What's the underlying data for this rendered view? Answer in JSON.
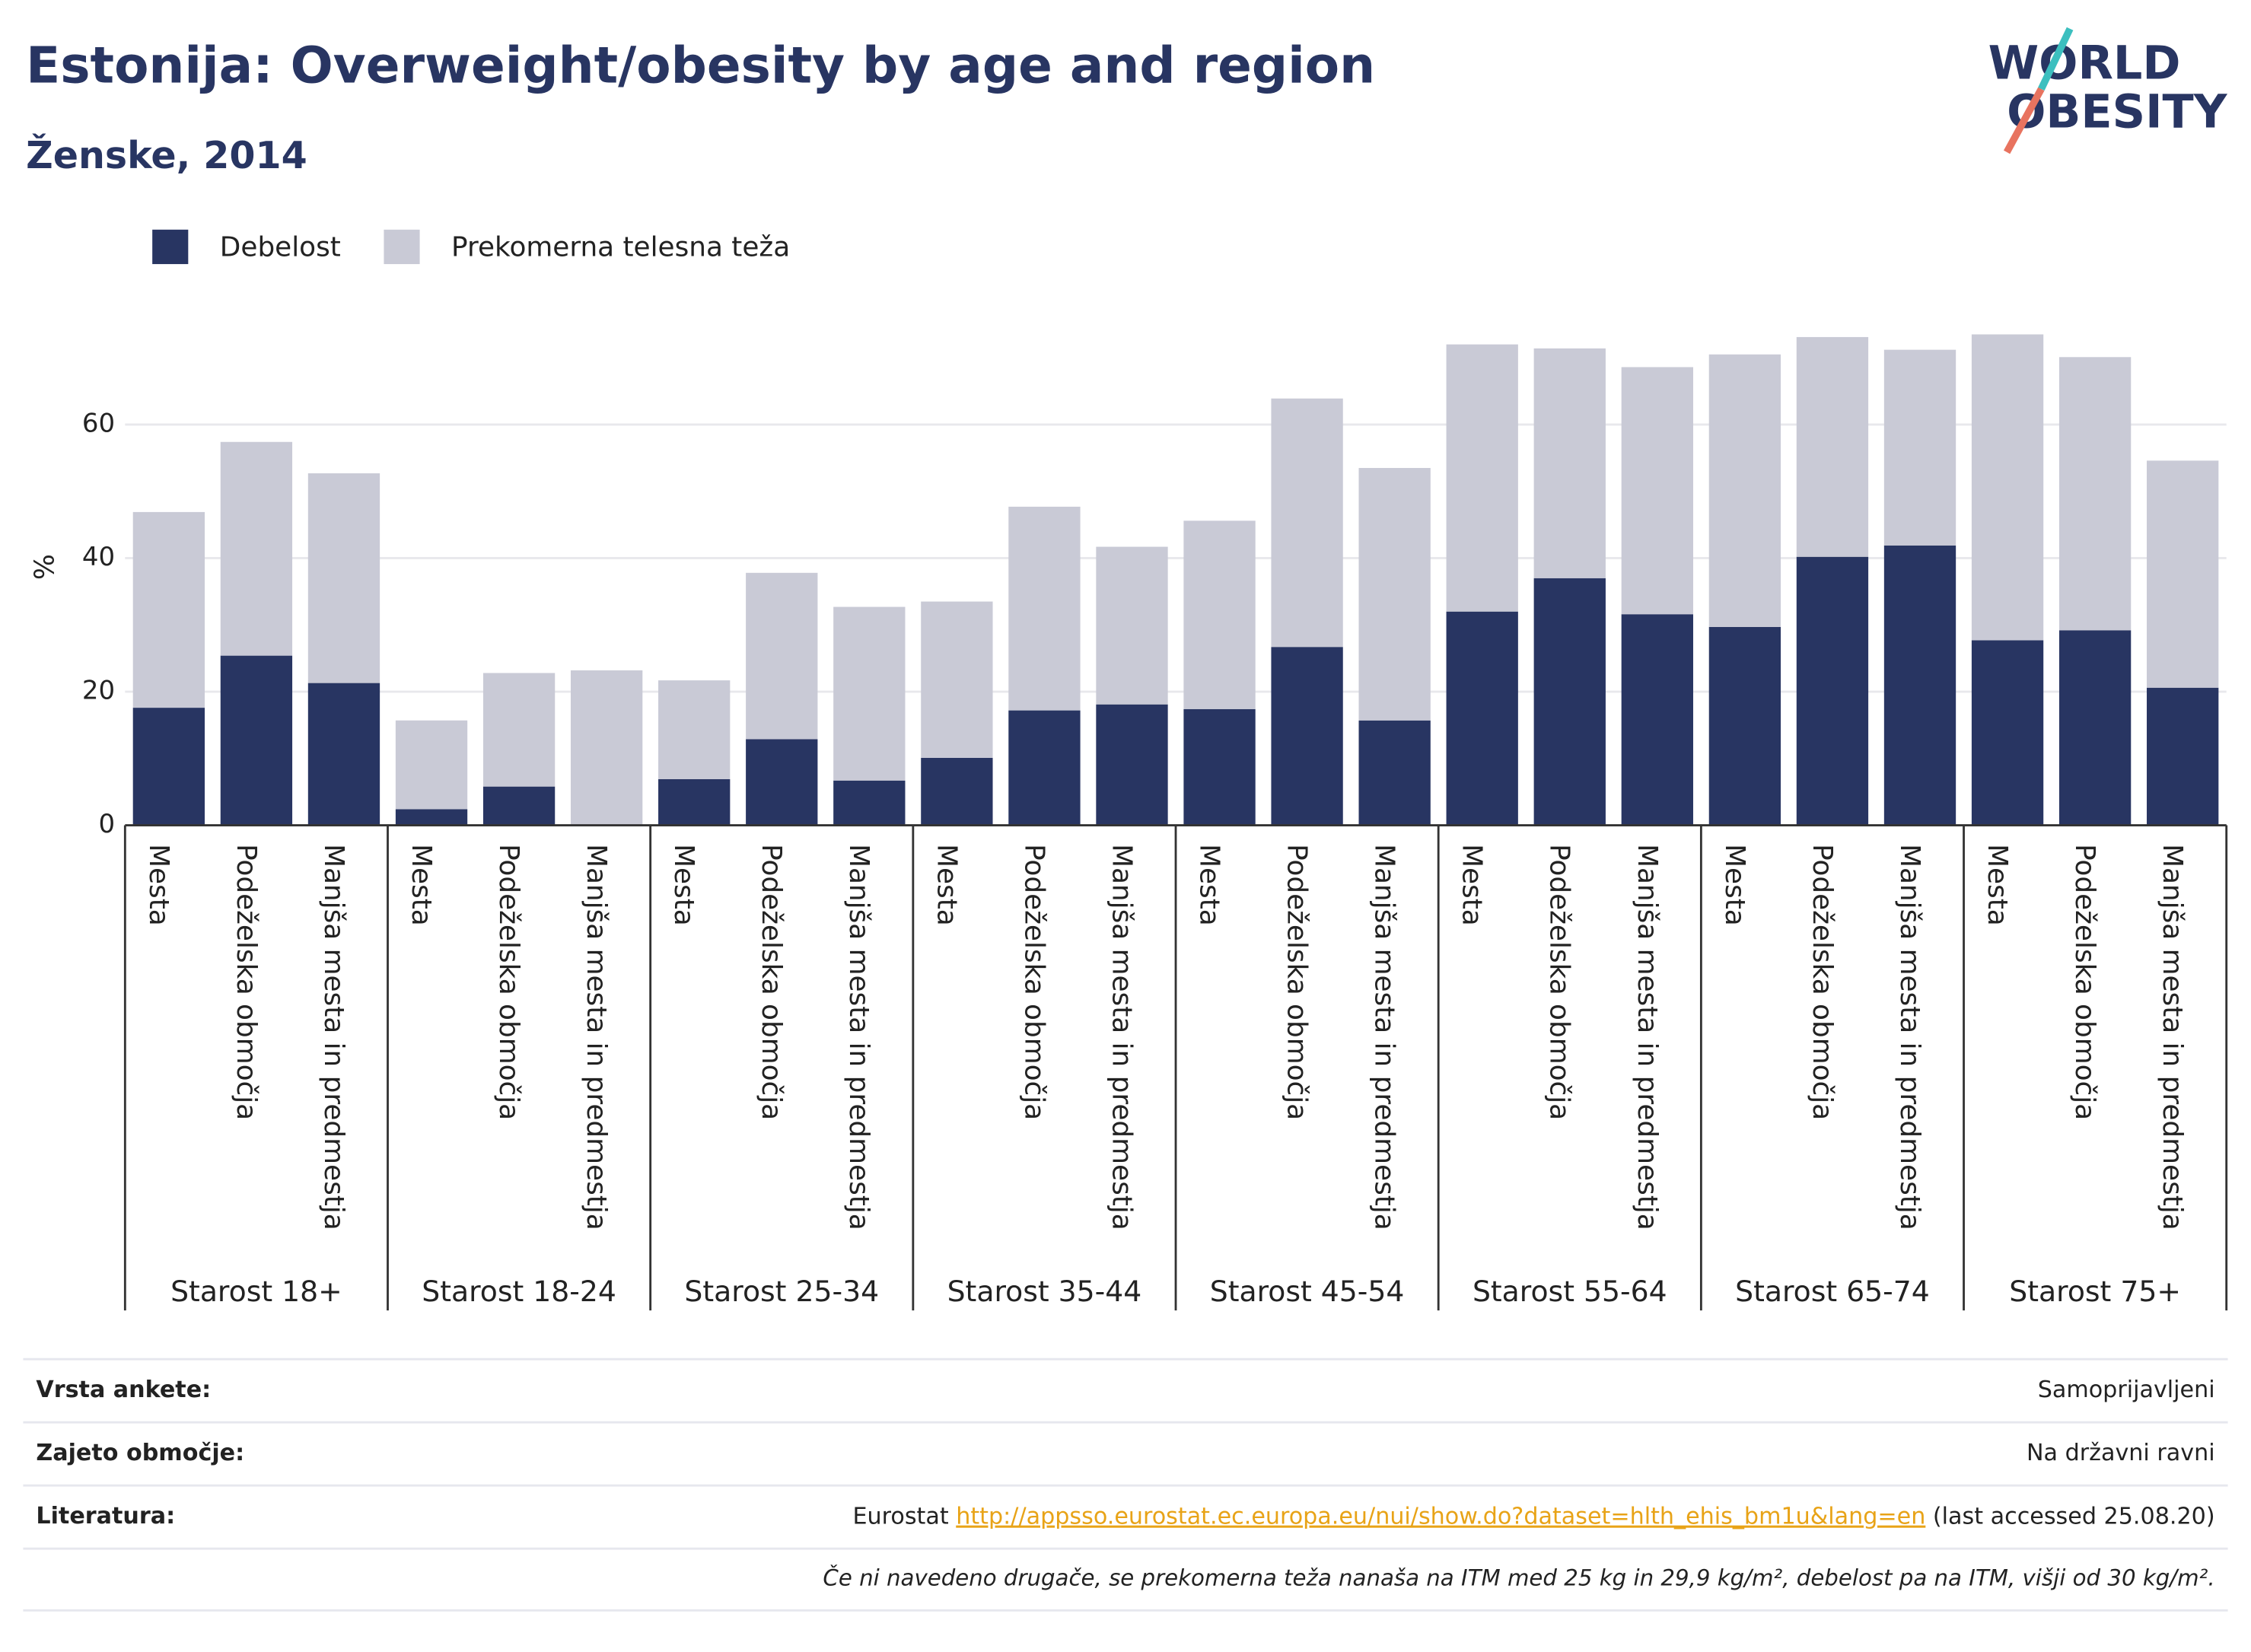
{
  "chart_data": {
    "type": "stacked_bar",
    "title": "Estonija: Overweight/obesity by age and region",
    "subtitle": "Ženske, 2014",
    "y_label": "%",
    "groups": [
      "Starost 18+",
      "Starost 18-24",
      "Starost 25-34",
      "Starost 35-44",
      "Starost 45-54",
      "Starost 55-64",
      "Starost 65-74",
      "Starost 75+"
    ],
    "categories": [
      "Mesta",
      "Podeželska območja",
      "Manjša mesta in predmestja",
      "Mesta",
      "Podeželska območja",
      "Manjša mesta in predmestja",
      "Mesta",
      "Podeželska območja",
      "Manjša mesta in predmestja",
      "Mesta",
      "Podeželska območja",
      "Manjša mesta in predmestja",
      "Mesta",
      "Podeželska območja",
      "Manjša mesta in predmestja",
      "Mesta",
      "Podeželska območja",
      "Manjša mesta in predmestja",
      "Mesta",
      "Podeželska območja",
      "Manjša mesta in predmestja",
      "Mesta",
      "Podeželska območja",
      "Manjša mesta in predmestja"
    ],
    "series": [
      {
        "name": "Debelost",
        "color": "#283562",
        "values": [
          17.6,
          25.4,
          21.3,
          2.4,
          5.8,
          null,
          6.9,
          12.9,
          6.7,
          10.1,
          17.2,
          18.1,
          17.4,
          26.7,
          15.7,
          32.0,
          37.0,
          31.6,
          29.7,
          40.2,
          41.9,
          27.7,
          29.2,
          20.6
        ]
      },
      {
        "name": "Prekomerna telesna teža",
        "color": "#c9cad6",
        "values": [
          29.3,
          32.0,
          31.4,
          13.3,
          17.0,
          23.2,
          14.8,
          24.9,
          26.0,
          23.4,
          30.5,
          23.6,
          28.2,
          37.2,
          37.8,
          40.0,
          34.4,
          37.0,
          40.8,
          32.9,
          29.3,
          45.8,
          40.9,
          34.0
        ]
      }
    ],
    "ylim": [
      0,
      75
    ],
    "yticks": [
      0,
      20,
      40,
      60
    ],
    "grid": true
  },
  "logo": [
    "WORLD",
    "OBESITY"
  ],
  "footer": {
    "rows": [
      {
        "label": "Vrsta ankete:",
        "value": "Samoprijavljeni"
      },
      {
        "label": "Zajeto območje:",
        "value": "Na državni ravni"
      },
      {
        "label": "Literatura:",
        "value": [
          "Eurostat ",
          "http://appsso.eurostat.ec.europa.eu/nui/show.do?dataset=hlth_ehis_bm1u&lang=en",
          " (last accessed 25.08.20)"
        ]
      }
    ],
    "note": "Če ni navedeno drugače, se prekomerna teža nanaša na ITM med 25 kg in 29,9 kg/m², debelost pa na ITM, višji od 30 kg/m²."
  }
}
